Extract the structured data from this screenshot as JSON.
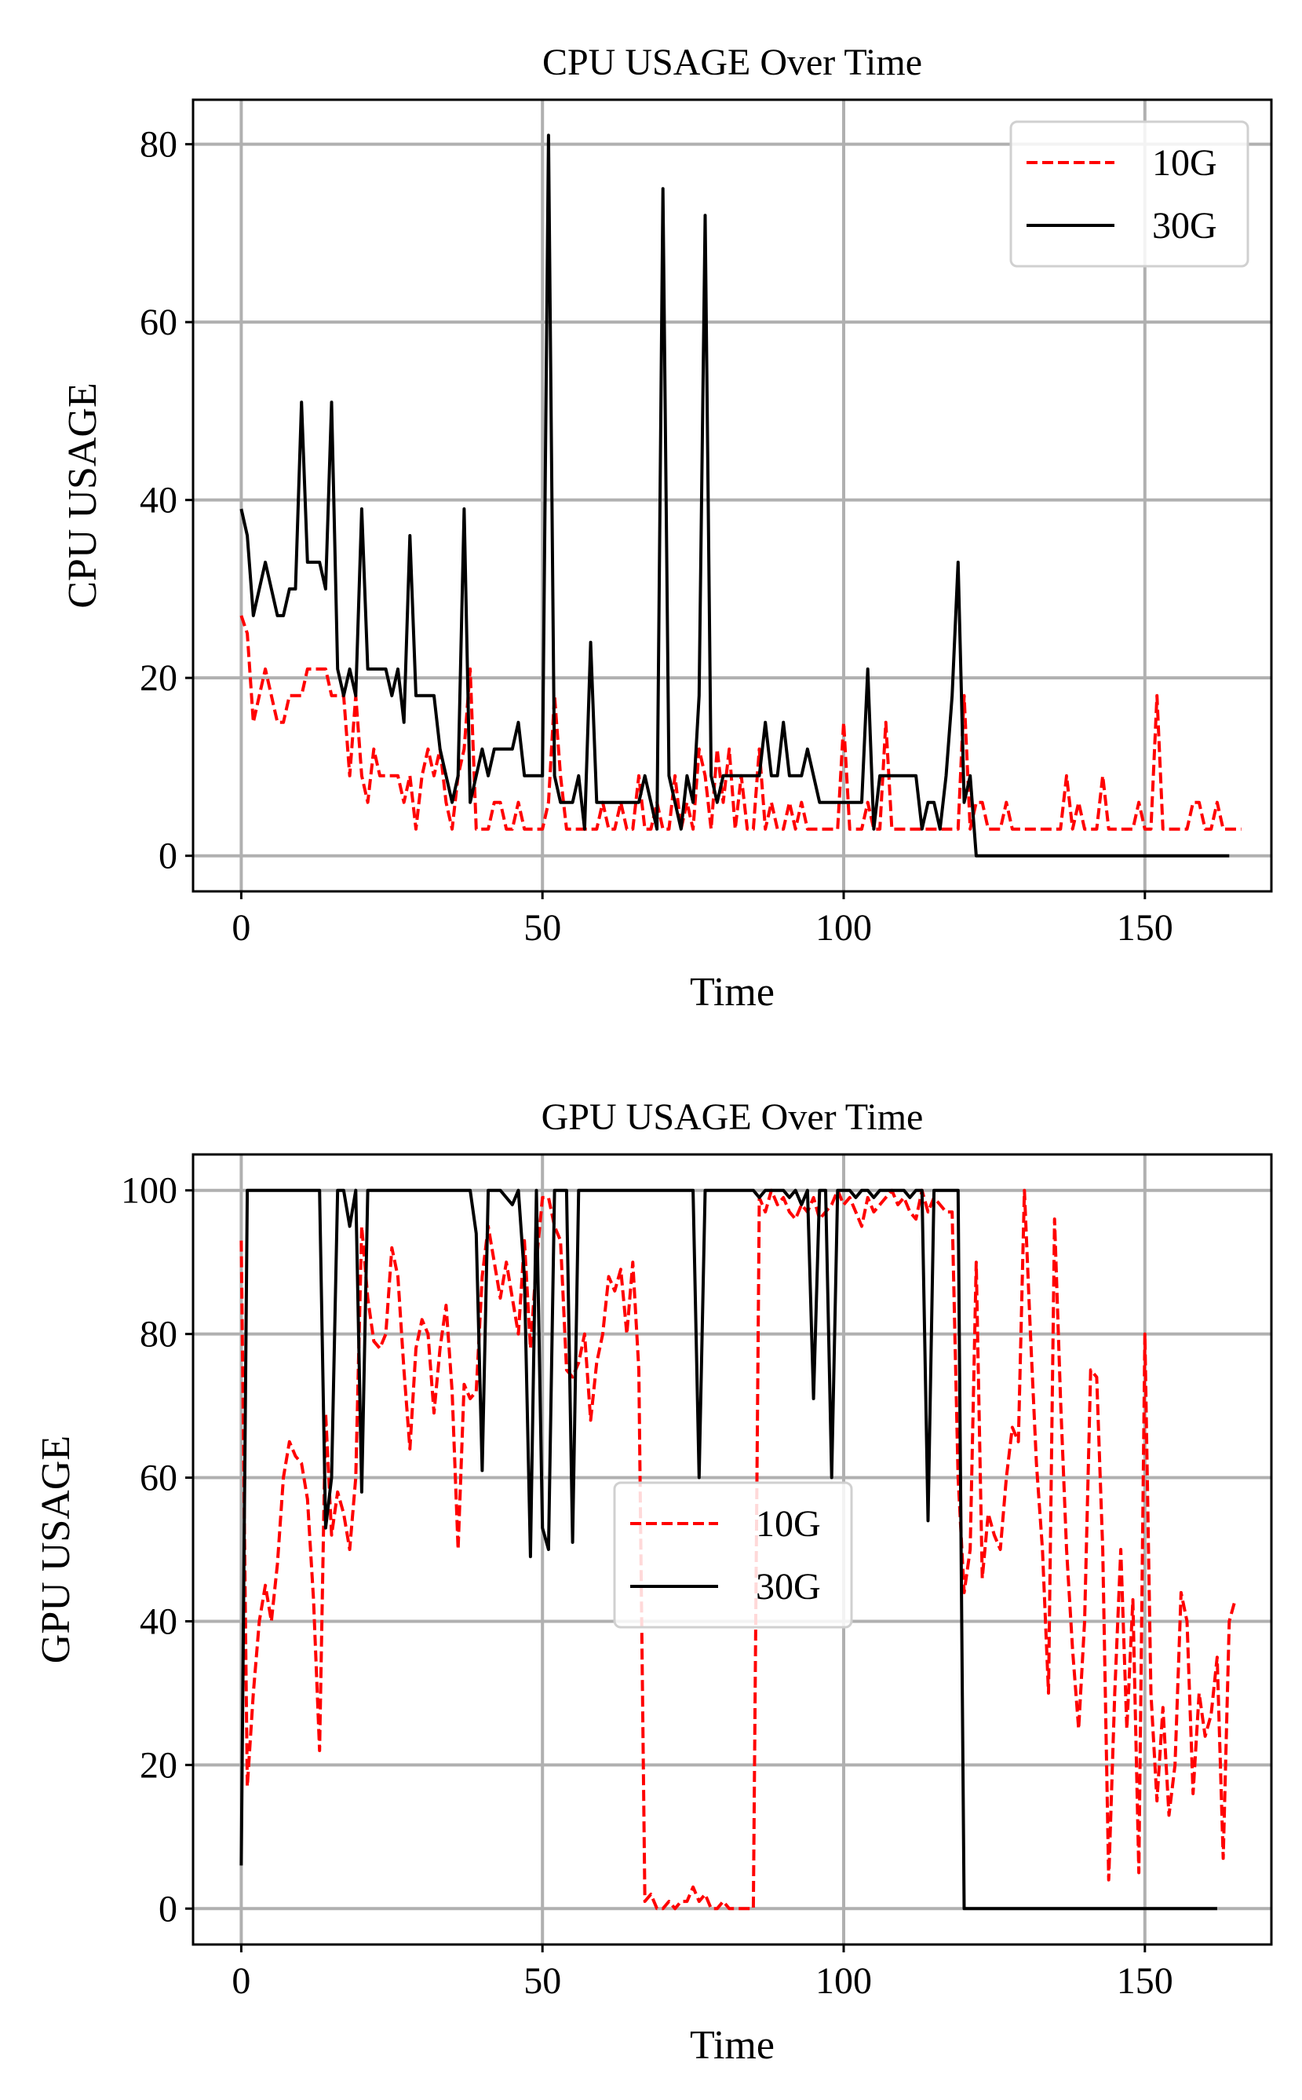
{
  "chart_data": [
    {
      "type": "line",
      "title": "CPU USAGE Over Time",
      "xlabel": "Time",
      "ylabel": "CPU USAGE",
      "xlim": [
        -8,
        171
      ],
      "ylim": [
        -4,
        85
      ],
      "xticks": [
        0,
        50,
        100,
        150
      ],
      "yticks": [
        0,
        20,
        40,
        60,
        80
      ],
      "grid": true,
      "legend_position": "top-right",
      "series": [
        {
          "name": "10G",
          "color": "#ff0000",
          "style": "dashed",
          "values": [
            27,
            25,
            15,
            18,
            21,
            18,
            15,
            15,
            18,
            18,
            18,
            21,
            21,
            21,
            21,
            18,
            18,
            18,
            9,
            18,
            9,
            6,
            12,
            9,
            9,
            9,
            9,
            6,
            9,
            3,
            9,
            12,
            9,
            12,
            6,
            3,
            9,
            12,
            21,
            3,
            3,
            3,
            6,
            6,
            3,
            3,
            6,
            3,
            3,
            3,
            3,
            6,
            18,
            9,
            3,
            3,
            3,
            3,
            3,
            3,
            6,
            3,
            3,
            6,
            3,
            3,
            9,
            3,
            3,
            6,
            3,
            3,
            9,
            3,
            6,
            3,
            12,
            9,
            3,
            12,
            6,
            12,
            3,
            9,
            3,
            3,
            12,
            3,
            6,
            3,
            3,
            6,
            3,
            6,
            3,
            3,
            3,
            3,
            3,
            3,
            15,
            3,
            3,
            3,
            6,
            3,
            3,
            15,
            3,
            3,
            3,
            3,
            3,
            3,
            3,
            3,
            3,
            3,
            3,
            3,
            18,
            3,
            6,
            6,
            3,
            3,
            3,
            6,
            3,
            3,
            3,
            3,
            3,
            3,
            3,
            3,
            3,
            9,
            3,
            6,
            3,
            3,
            3,
            9,
            3,
            3,
            3,
            3,
            3,
            6,
            3,
            3,
            18,
            3,
            3,
            3,
            3,
            3,
            6,
            6,
            3,
            3,
            6,
            3,
            3,
            3,
            3
          ],
          "x_start": 0
        },
        {
          "name": "30G",
          "color": "#000000",
          "style": "solid",
          "values": [
            39,
            36,
            27,
            30,
            33,
            30,
            27,
            27,
            30,
            30,
            51,
            33,
            33,
            33,
            30,
            51,
            21,
            18,
            21,
            18,
            39,
            21,
            21,
            21,
            21,
            18,
            21,
            15,
            36,
            18,
            18,
            18,
            18,
            12,
            9,
            6,
            9,
            39,
            6,
            9,
            12,
            9,
            12,
            12,
            12,
            12,
            15,
            9,
            9,
            9,
            9,
            81,
            9,
            6,
            6,
            6,
            9,
            3,
            24,
            6,
            6,
            6,
            6,
            6,
            6,
            6,
            6,
            9,
            6,
            3,
            75,
            9,
            6,
            3,
            9,
            6,
            18,
            72,
            9,
            6,
            9,
            9,
            9,
            9,
            9,
            9,
            9,
            15,
            9,
            9,
            15,
            9,
            9,
            9,
            12,
            9,
            6,
            6,
            6,
            6,
            6,
            6,
            6,
            6,
            21,
            3,
            9,
            9,
            9,
            9,
            9,
            9,
            9,
            3,
            6,
            6,
            3,
            9,
            18,
            33,
            6,
            9,
            0,
            0,
            0,
            0,
            0,
            0,
            0,
            0,
            0,
            0,
            0,
            0,
            0,
            0,
            0,
            0,
            0,
            0,
            0,
            0,
            0,
            0,
            0,
            0,
            0,
            0,
            0,
            0,
            0,
            0,
            0,
            0,
            0,
            0,
            0,
            0,
            0,
            0,
            0,
            0,
            0,
            0,
            0
          ],
          "x_start": 0
        }
      ]
    },
    {
      "type": "line",
      "title": "GPU USAGE Over Time",
      "xlabel": "Time",
      "ylabel": "GPU USAGE",
      "xlim": [
        -8,
        171
      ],
      "ylim": [
        -5,
        105
      ],
      "xticks": [
        0,
        50,
        100,
        150
      ],
      "yticks": [
        0,
        20,
        40,
        60,
        80,
        100
      ],
      "grid": true,
      "legend_position": "center",
      "series": [
        {
          "name": "10G",
          "color": "#ff0000",
          "style": "dashed",
          "values": [
            93,
            17,
            30,
            40,
            45,
            40,
            48,
            60,
            65,
            63,
            62,
            57,
            43,
            22,
            69,
            52,
            58,
            55,
            50,
            60,
            95,
            85,
            79,
            78,
            80,
            92,
            88,
            75,
            64,
            78,
            82,
            80,
            69,
            78,
            84,
            72,
            50,
            73,
            71,
            72,
            88,
            95,
            90,
            85,
            90,
            85,
            80,
            93,
            78,
            90,
            99,
            99,
            95,
            93,
            75,
            74,
            76,
            80,
            68,
            76,
            80,
            88,
            86,
            89,
            80,
            90,
            75,
            1,
            2,
            0,
            0,
            1,
            0,
            1,
            1,
            3,
            1,
            2,
            0,
            0,
            1,
            0,
            0,
            0,
            0,
            0,
            99,
            97,
            100,
            98,
            99,
            97,
            96,
            98,
            97,
            99,
            96,
            97,
            98,
            100,
            98,
            99,
            97,
            95,
            99,
            97,
            98,
            99,
            100,
            98,
            99,
            97,
            96,
            100,
            97,
            99,
            98,
            97,
            97,
            60,
            44,
            50,
            90,
            46,
            55,
            52,
            50,
            60,
            67,
            65,
            100,
            80,
            62,
            50,
            30,
            96,
            71,
            50,
            36,
            25,
            40,
            75,
            74,
            50,
            4,
            30,
            50,
            25,
            43,
            5,
            80,
            30,
            15,
            28,
            13,
            20,
            44,
            40,
            16,
            30,
            24,
            27,
            35,
            7,
            40,
            43
          ],
          "x_start": 0
        },
        {
          "name": "30G",
          "color": "#000000",
          "style": "solid",
          "values": [
            6,
            100,
            100,
            100,
            100,
            100,
            100,
            100,
            100,
            100,
            100,
            100,
            100,
            100,
            53,
            60,
            100,
            100,
            95,
            100,
            58,
            100,
            100,
            100,
            100,
            100,
            100,
            100,
            100,
            100,
            100,
            100,
            100,
            100,
            100,
            100,
            100,
            100,
            100,
            94,
            61,
            100,
            100,
            100,
            99,
            98,
            100,
            88,
            49,
            100,
            53,
            50,
            100,
            100,
            100,
            51,
            100,
            100,
            100,
            100,
            100,
            100,
            100,
            100,
            100,
            100,
            100,
            100,
            100,
            100,
            100,
            100,
            100,
            100,
            100,
            100,
            60,
            100,
            100,
            100,
            100,
            100,
            100,
            100,
            100,
            100,
            99,
            100,
            100,
            100,
            100,
            99,
            100,
            98,
            100,
            71,
            100,
            100,
            60,
            100,
            100,
            100,
            99,
            100,
            100,
            99,
            100,
            100,
            100,
            100,
            100,
            99,
            100,
            100,
            54,
            100,
            100,
            100,
            100,
            100,
            0,
            0,
            0,
            0,
            0,
            0,
            0,
            0,
            0,
            0,
            0,
            0,
            0,
            0,
            0,
            0,
            0,
            0,
            0,
            0,
            0,
            0,
            0,
            0,
            0,
            0,
            0,
            0,
            0,
            0,
            0,
            0,
            0,
            0,
            0,
            0,
            0,
            0,
            0,
            0,
            0,
            0,
            0
          ],
          "x_start": 0
        }
      ]
    }
  ]
}
